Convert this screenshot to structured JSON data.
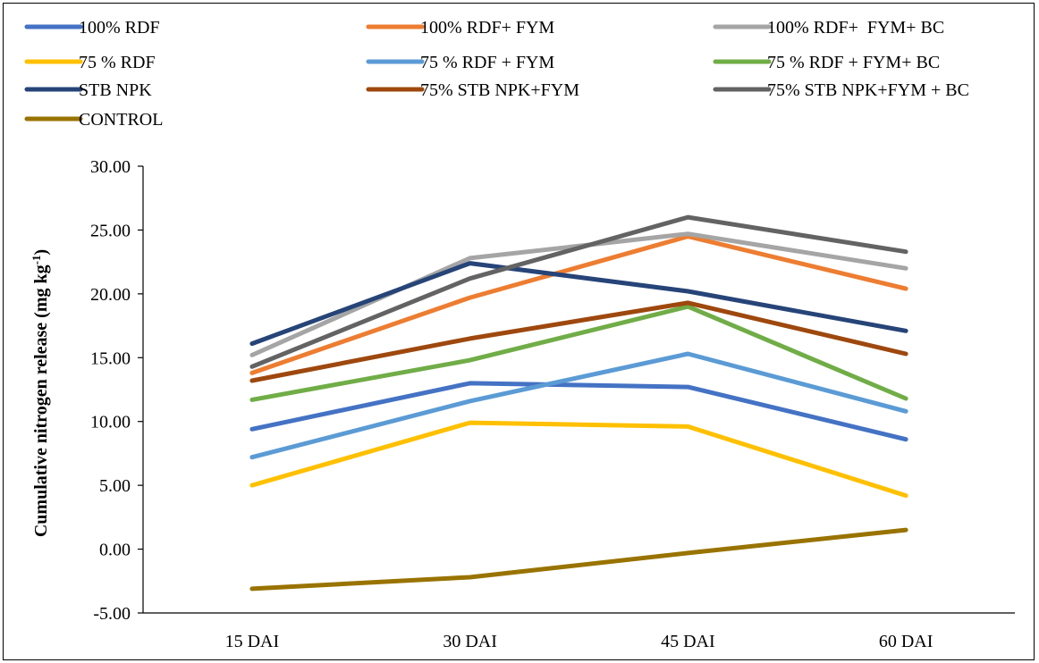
{
  "chart_data": {
    "type": "line",
    "title": "",
    "xlabel": "",
    "ylabel": "Cumulative nitrogen release (mg kg",
    "ylabel_sup": "-1",
    "ylabel_close": ")",
    "categories": [
      "15 DAI",
      "30 DAI",
      "45 DAI",
      "60 DAI"
    ],
    "ylim": [
      -5,
      30
    ],
    "yticks": [
      -5,
      0,
      5,
      10,
      15,
      20,
      25,
      30
    ],
    "ytick_labels": [
      "-5.00",
      "0.00",
      "5.00",
      "10.00",
      "15.00",
      "20.00",
      "25.00",
      "30.00"
    ],
    "grid": false,
    "legend_position": "top",
    "series": [
      {
        "name": "100% RDF",
        "color": "#4472C4",
        "values": [
          9.4,
          13.0,
          12.7,
          8.6
        ]
      },
      {
        "name": "100% RDF+ FYM",
        "color": "#ED7D31",
        "values": [
          13.8,
          19.7,
          24.5,
          20.4
        ]
      },
      {
        "name": "100% RDF+  FYM+ BC",
        "color": "#A5A5A5",
        "values": [
          15.2,
          22.8,
          24.7,
          22.0
        ]
      },
      {
        "name": "75 % RDF",
        "color": "#FFC000",
        "values": [
          5.0,
          9.9,
          9.6,
          4.2
        ]
      },
      {
        "name": "75 % RDF + FYM",
        "color": "#5B9BD5",
        "values": [
          7.2,
          11.6,
          15.3,
          10.8
        ]
      },
      {
        "name": "75 % RDF + FYM+ BC",
        "color": "#70AD47",
        "values": [
          11.7,
          14.8,
          19.0,
          11.8
        ]
      },
      {
        "name": "STB NPK",
        "color": "#264478",
        "values": [
          16.1,
          22.4,
          20.2,
          17.1
        ]
      },
      {
        "name": "75% STB NPK+FYM",
        "color": "#9E480E",
        "values": [
          13.2,
          16.5,
          19.3,
          15.3
        ]
      },
      {
        "name": "75% STB NPK+FYM + BC",
        "color": "#636363",
        "values": [
          14.3,
          21.2,
          26.0,
          23.3
        ]
      },
      {
        "name": "CONTROL",
        "color": "#997300",
        "values": [
          -3.1,
          -2.2,
          -0.3,
          1.5
        ]
      }
    ]
  }
}
